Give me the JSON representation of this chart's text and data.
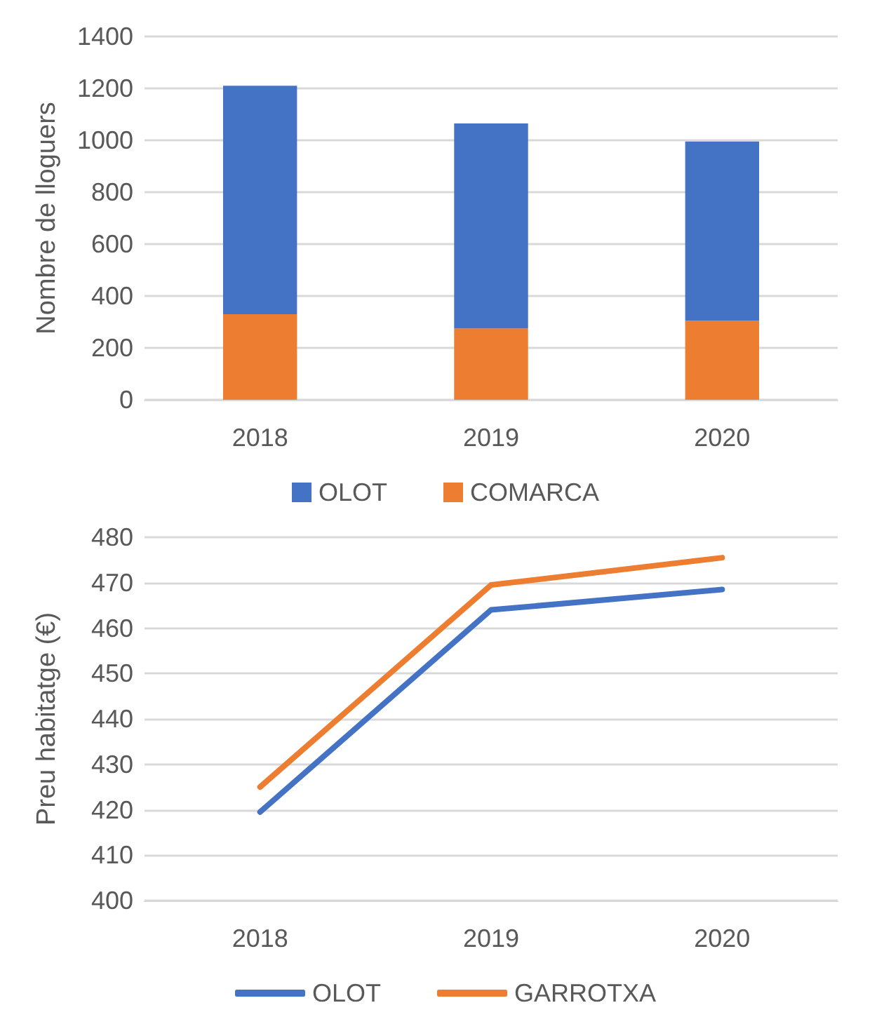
{
  "chart_data": [
    {
      "type": "bar",
      "stacked": true,
      "ylabel": "Nombre de lloguers",
      "categories": [
        "2018",
        "2019",
        "2020"
      ],
      "series": [
        {
          "name": "COMARCA",
          "color": "#ed7d31",
          "values": [
            330,
            275,
            305
          ]
        },
        {
          "name": "OLOT",
          "color": "#4472c4",
          "values": [
            880,
            790,
            690
          ]
        }
      ],
      "ylim": [
        0,
        1400
      ],
      "yticks": [
        0,
        200,
        400,
        600,
        800,
        1000,
        1200,
        1400
      ],
      "grid": "y",
      "legend": "bottom"
    },
    {
      "type": "line",
      "ylabel": "Preu habitatge (€)",
      "categories": [
        "2018",
        "2019",
        "2020"
      ],
      "series": [
        {
          "name": "OLOT",
          "color": "#4472c4",
          "values": [
            419.5,
            464,
            468.5
          ]
        },
        {
          "name": "GARROTXA",
          "color": "#ed7d31",
          "values": [
            425,
            469.5,
            475.5
          ]
        }
      ],
      "ylim": [
        400,
        480
      ],
      "yticks": [
        400,
        410,
        420,
        430,
        440,
        450,
        460,
        470,
        480
      ],
      "grid": "y",
      "legend": "bottom",
      "marker": "none",
      "line_style": "solid"
    }
  ]
}
